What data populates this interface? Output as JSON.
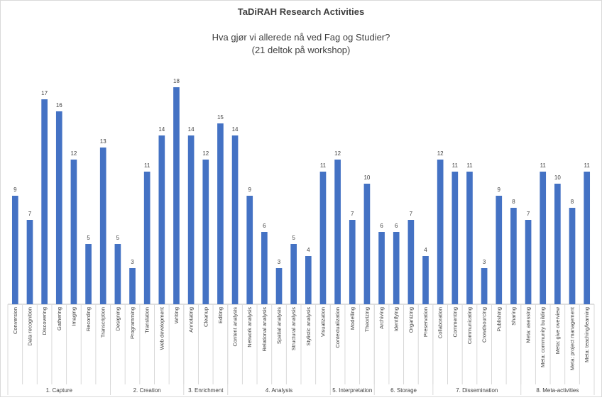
{
  "chart_data": {
    "type": "bar",
    "title": "TaDiRAH Research Activities",
    "subtitle_lines": [
      "Hva gjør vi allerede nå ved Fag og Studier?",
      "(21 deltok på workshop)"
    ],
    "xlabel": "",
    "ylabel": "",
    "ylim": [
      0,
      19
    ],
    "grid": false,
    "legend": "none",
    "bar_color": "#4472c4",
    "groups": [
      {
        "name": "1. Capture",
        "items": [
          {
            "label": "Conversion",
            "value": 9
          },
          {
            "label": "Data recognition",
            "value": 7
          },
          {
            "label": "Discovering",
            "value": 17
          },
          {
            "label": "Gathering",
            "value": 16
          },
          {
            "label": "Imaging",
            "value": 12
          },
          {
            "label": "Recording",
            "value": 5
          },
          {
            "label": "Transcription",
            "value": 13
          }
        ]
      },
      {
        "name": "2. Creation",
        "items": [
          {
            "label": "Designing",
            "value": 5
          },
          {
            "label": "Programming",
            "value": 3
          },
          {
            "label": "Translation",
            "value": 11
          },
          {
            "label": "Web development",
            "value": 14
          },
          {
            "label": "Writing",
            "value": 18
          }
        ]
      },
      {
        "name": "3. Enrichment",
        "items": [
          {
            "label": "Annotating",
            "value": 14
          },
          {
            "label": "Cleanup",
            "value": 12
          },
          {
            "label": "Editing",
            "value": 15
          }
        ]
      },
      {
        "name": "4. Analysis",
        "items": [
          {
            "label": "Content analysis",
            "value": 14
          },
          {
            "label": "Network analysis",
            "value": 9
          },
          {
            "label": "Relational analysis",
            "value": 6
          },
          {
            "label": "Spatial analysis",
            "value": 3
          },
          {
            "label": "Structural analysis",
            "value": 5
          },
          {
            "label": "Stylistic analysis",
            "value": 4
          },
          {
            "label": "Visualization",
            "value": 11
          }
        ]
      },
      {
        "name": "5. Interpretation",
        "items": [
          {
            "label": "Contextualization",
            "value": 12
          },
          {
            "label": "Modelling",
            "value": 7
          },
          {
            "label": "Theorizing",
            "value": 10
          }
        ]
      },
      {
        "name": "6. Storage",
        "items": [
          {
            "label": "Archiving",
            "value": 6
          },
          {
            "label": "Identifying",
            "value": 6
          },
          {
            "label": "Organizing",
            "value": 7
          },
          {
            "label": "Preservation",
            "value": 4
          }
        ]
      },
      {
        "name": "7. Dissemination",
        "items": [
          {
            "label": "Collaboration",
            "value": 12
          },
          {
            "label": "Commenting",
            "value": 11
          },
          {
            "label": "Communicating",
            "value": 11
          },
          {
            "label": "Crowdsourcing",
            "value": 3
          },
          {
            "label": "Publishing",
            "value": 9
          },
          {
            "label": "Sharing",
            "value": 8
          }
        ]
      },
      {
        "name": "8. Meta-activities",
        "items": [
          {
            "label": "Meta: asessing",
            "value": 7
          },
          {
            "label": "Meta: community building",
            "value": 11
          },
          {
            "label": "Meta: give overview",
            "value": 10
          },
          {
            "label": "Meta: project management",
            "value": 8
          },
          {
            "label": "Meta: teaching/learning",
            "value": 11
          }
        ]
      }
    ]
  }
}
